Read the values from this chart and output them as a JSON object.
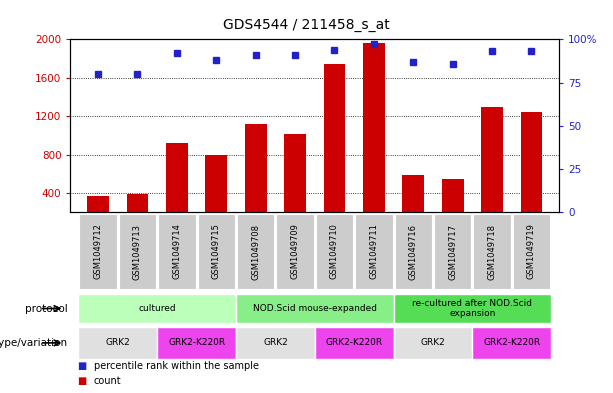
{
  "title": "GDS4544 / 211458_s_at",
  "samples": [
    "GSM1049712",
    "GSM1049713",
    "GSM1049714",
    "GSM1049715",
    "GSM1049708",
    "GSM1049709",
    "GSM1049710",
    "GSM1049711",
    "GSM1049716",
    "GSM1049717",
    "GSM1049718",
    "GSM1049719"
  ],
  "counts": [
    370,
    390,
    920,
    800,
    1120,
    1010,
    1740,
    1960,
    590,
    550,
    1300,
    1240
  ],
  "percentiles": [
    80,
    80,
    92,
    88,
    91,
    91,
    94,
    97,
    87,
    86,
    93,
    93
  ],
  "bar_color": "#cc0000",
  "dot_color": "#2222cc",
  "ylim_left": [
    200,
    2000
  ],
  "ylim_right": [
    0,
    100
  ],
  "yticks_left": [
    400,
    800,
    1200,
    1600,
    2000
  ],
  "yticks_right": [
    0,
    25,
    50,
    75,
    100
  ],
  "protocols": [
    {
      "label": "cultured",
      "start": 0,
      "end": 4,
      "color": "#bbffbb"
    },
    {
      "label": "NOD.Scid mouse-expanded",
      "start": 4,
      "end": 8,
      "color": "#88ee88"
    },
    {
      "label": "re-cultured after NOD.Scid\nexpansion",
      "start": 8,
      "end": 12,
      "color": "#55dd55"
    }
  ],
  "genotypes": [
    {
      "label": "GRK2",
      "start": 0,
      "end": 2,
      "color": "#e0e0e0"
    },
    {
      "label": "GRK2-K220R",
      "start": 2,
      "end": 4,
      "color": "#ee44ee"
    },
    {
      "label": "GRK2",
      "start": 4,
      "end": 6,
      "color": "#e0e0e0"
    },
    {
      "label": "GRK2-K220R",
      "start": 6,
      "end": 8,
      "color": "#ee44ee"
    },
    {
      "label": "GRK2",
      "start": 8,
      "end": 10,
      "color": "#e0e0e0"
    },
    {
      "label": "GRK2-K220R",
      "start": 10,
      "end": 12,
      "color": "#ee44ee"
    }
  ],
  "protocol_label": "protocol",
  "genotype_label": "genotype/variation",
  "legend_count": "count",
  "legend_percentile": "percentile rank within the sample",
  "tick_color_left": "#cc0000",
  "tick_color_right": "#2222cc",
  "xticklabel_bg": "#cccccc"
}
